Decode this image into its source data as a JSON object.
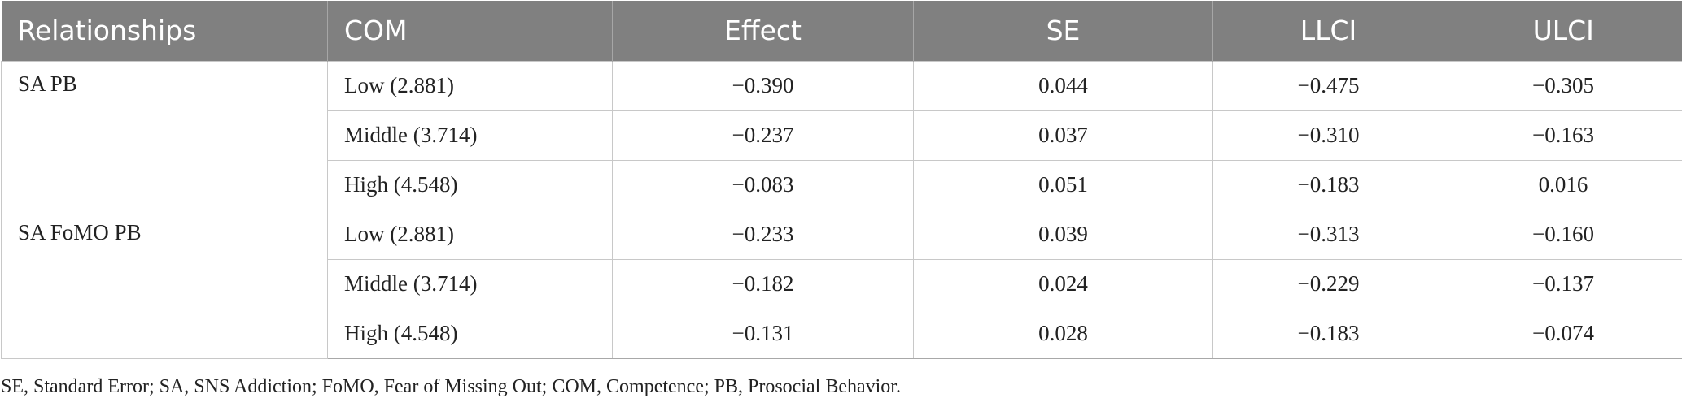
{
  "table": {
    "headers": [
      "Relationships",
      "COM",
      "Effect",
      "SE",
      "LLCI",
      "ULCI"
    ],
    "groups": [
      {
        "relationship": "SA PB",
        "rows": [
          {
            "com": "Low (2.881)",
            "effect": "−0.390",
            "se": "0.044",
            "llci": "−0.475",
            "ulci": "−0.305"
          },
          {
            "com": "Middle (3.714)",
            "effect": "−0.237",
            "se": "0.037",
            "llci": "−0.310",
            "ulci": "−0.163"
          },
          {
            "com": "High (4.548)",
            "effect": "−0.083",
            "se": "0.051",
            "llci": "−0.183",
            "ulci": "0.016"
          }
        ]
      },
      {
        "relationship": "SA FoMO PB",
        "rows": [
          {
            "com": "Low (2.881)",
            "effect": "−0.233",
            "se": "0.039",
            "llci": "−0.313",
            "ulci": "−0.160"
          },
          {
            "com": "Middle (3.714)",
            "effect": "−0.182",
            "se": "0.024",
            "llci": "−0.229",
            "ulci": "−0.137"
          },
          {
            "com": "High (4.548)",
            "effect": "−0.131",
            "se": "0.028",
            "llci": "−0.183",
            "ulci": "−0.074"
          }
        ]
      }
    ]
  },
  "footnote": "SE, Standard Error; SA, SNS Addiction; FoMO, Fear of Missing Out; COM, Competence; PB, Prosocial Behavior.",
  "colors": {
    "header_bg": "#808080",
    "header_text": "#ffffff",
    "grid_line": "#c8c8c8"
  }
}
